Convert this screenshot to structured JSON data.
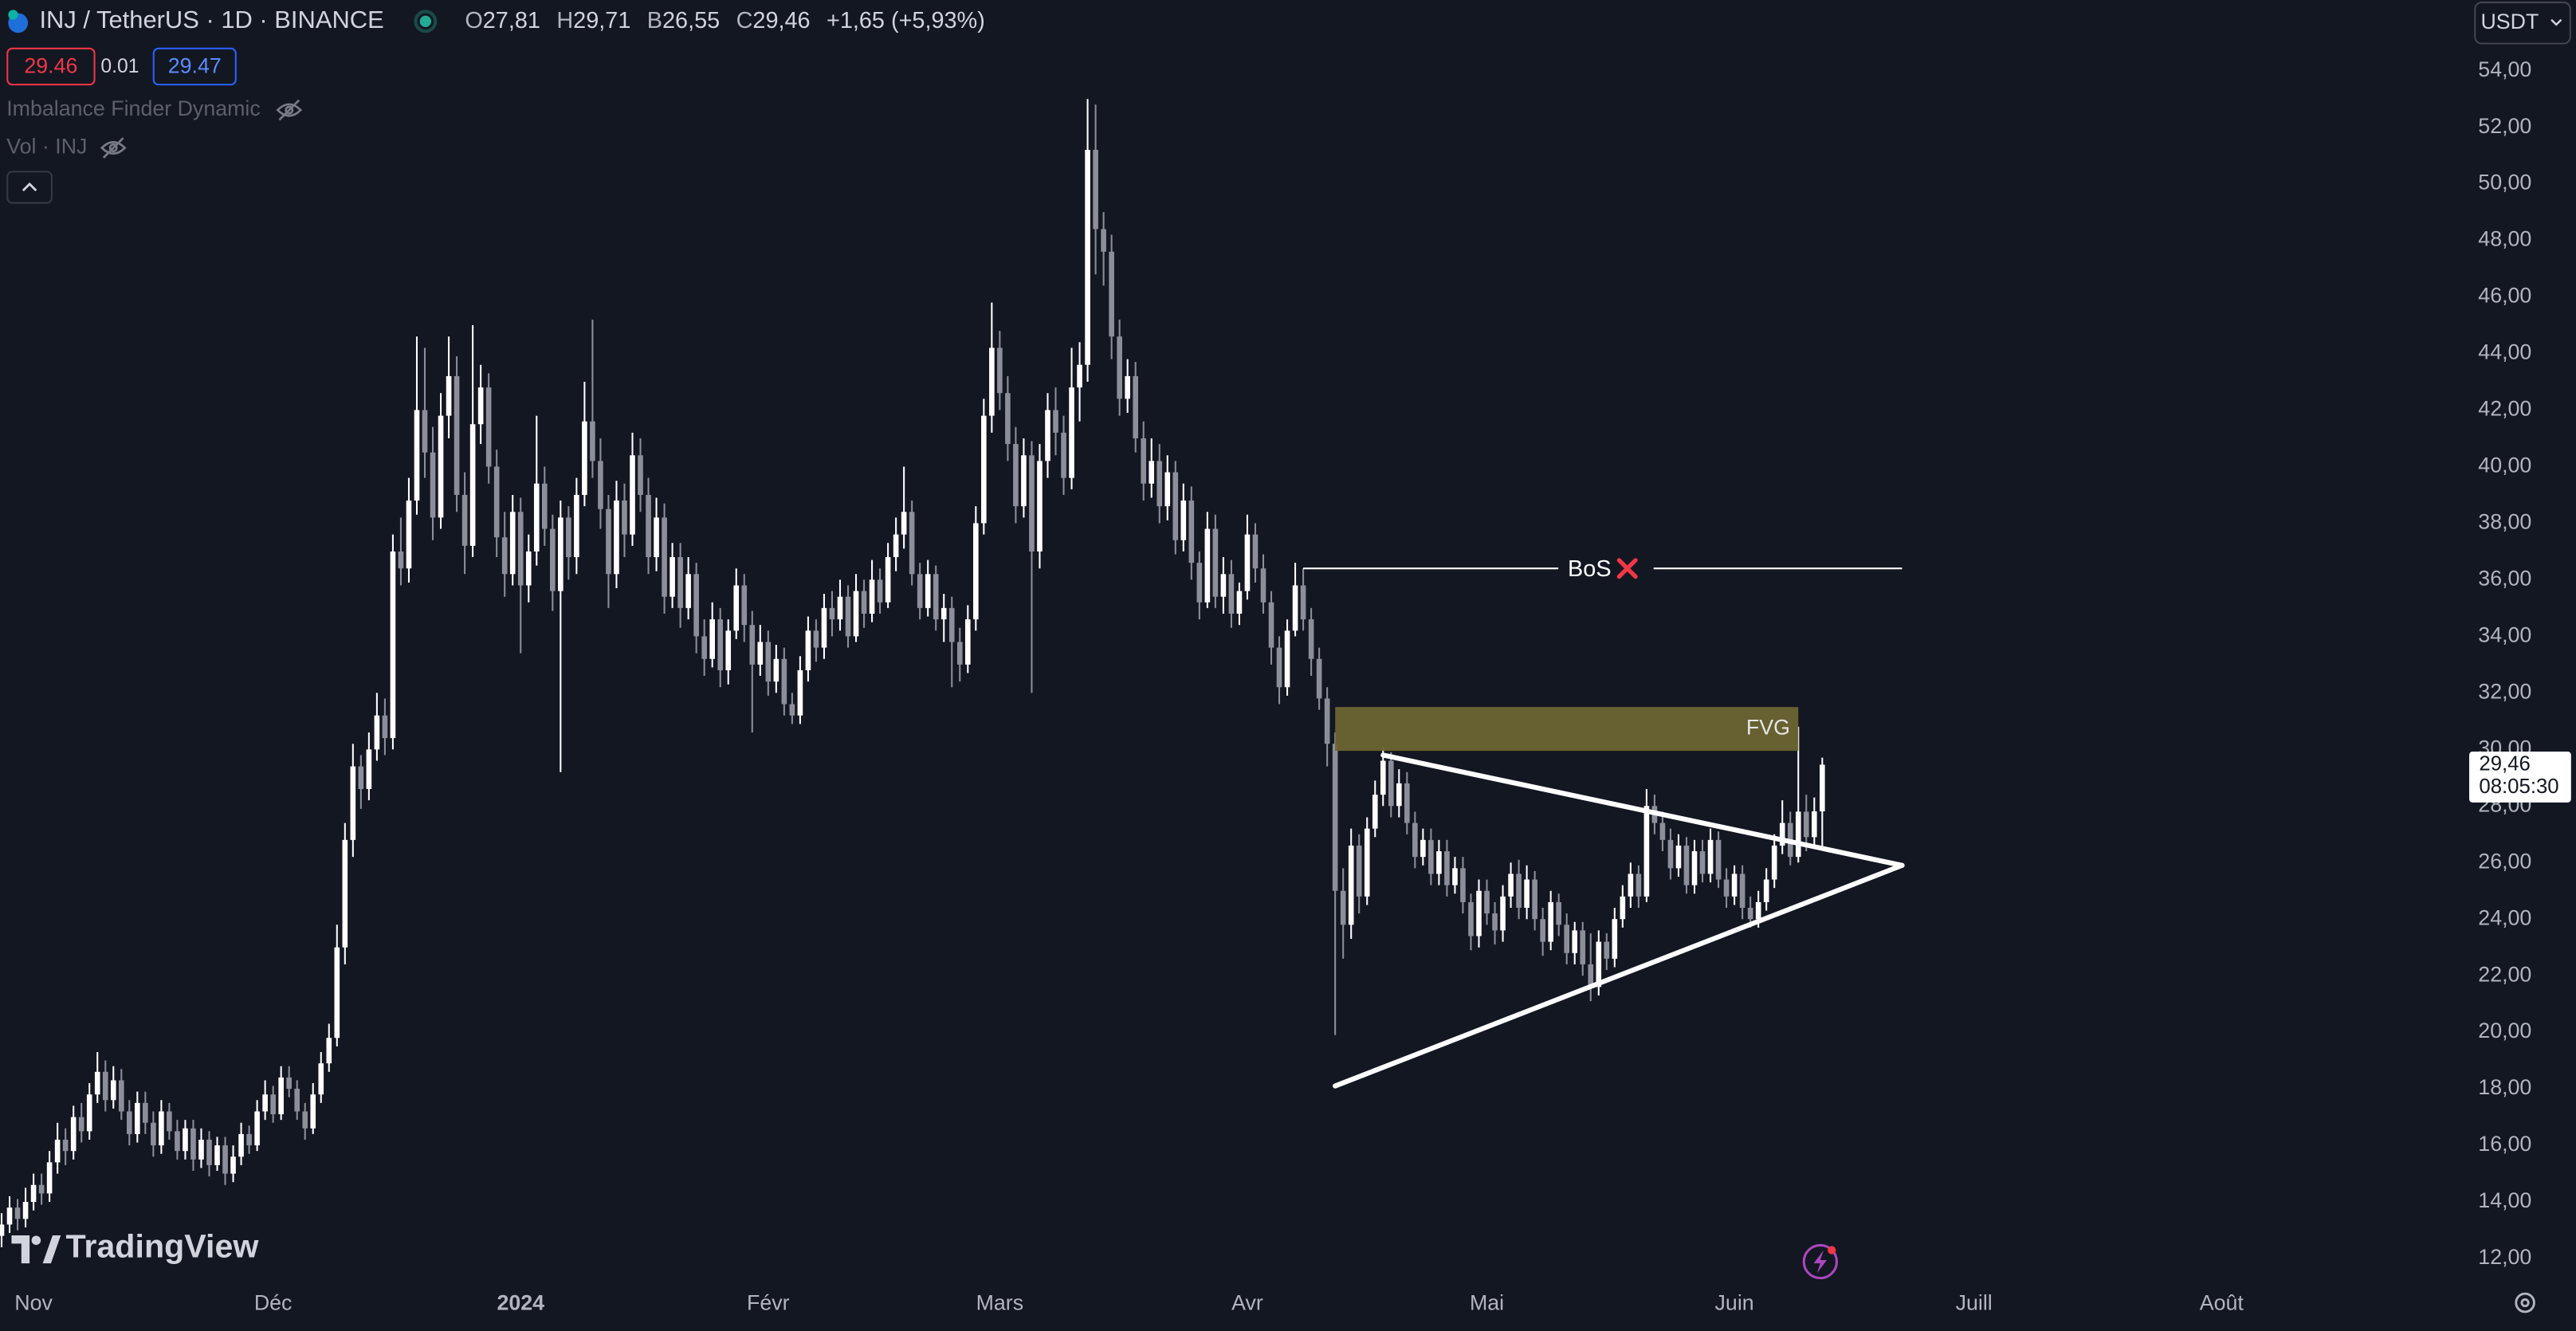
{
  "header": {
    "symbol": "INJ / TetherUS · 1D · BINANCE",
    "ohlc": [
      {
        "label": "O",
        "value": "27,81"
      },
      {
        "label": "H",
        "value": "29,71"
      },
      {
        "label": "B",
        "value": "26,55"
      },
      {
        "label": "C",
        "value": "29,46"
      }
    ],
    "change": "+1,65 (+5,93%)",
    "order_buttons": {
      "sell": "29.46",
      "spread": "0.01",
      "buy": "29.47"
    },
    "indicators": [
      "Imbalance Finder Dynamic",
      "Vol · INJ"
    ],
    "currency": "USDT",
    "brand": "TradingView"
  },
  "chart_data": {
    "type": "candlestick",
    "up_color": "#ffffff",
    "down_color": "#8c8f99",
    "xlim": [
      -0.2,
      308.4
    ],
    "ylim": [
      11.19,
      56.5
    ],
    "xticks": [
      {
        "value": 4,
        "label": "Nov"
      },
      {
        "value": 34,
        "label": "Déc"
      },
      {
        "value": 65,
        "label": "2024"
      },
      {
        "value": 96,
        "label": "Févr"
      },
      {
        "value": 125,
        "label": "Mars"
      },
      {
        "value": 156,
        "label": "Avr"
      },
      {
        "value": 186,
        "label": "Mai"
      },
      {
        "value": 217,
        "label": "Juin"
      },
      {
        "value": 247,
        "label": "Juill"
      },
      {
        "value": 278,
        "label": "Août"
      }
    ],
    "yticks": [
      {
        "value": 12,
        "label": "12,00"
      },
      {
        "value": 14,
        "label": "14,00"
      },
      {
        "value": 16,
        "label": "16,00"
      },
      {
        "value": 18,
        "label": "18,00"
      },
      {
        "value": 20,
        "label": "20,00"
      },
      {
        "value": 22,
        "label": "22,00"
      },
      {
        "value": 24,
        "label": "24,00"
      },
      {
        "value": 26,
        "label": "26,00"
      },
      {
        "value": 28,
        "label": "28,00"
      },
      {
        "value": 30,
        "label": "30,00"
      },
      {
        "value": 32,
        "label": "32,00"
      },
      {
        "value": 34,
        "label": "34,00"
      },
      {
        "value": 36,
        "label": "36,00"
      },
      {
        "value": 38,
        "label": "38,00"
      },
      {
        "value": 40,
        "label": "40,00"
      },
      {
        "value": 42,
        "label": "42,00"
      },
      {
        "value": 44,
        "label": "44,00"
      },
      {
        "value": 46,
        "label": "46,00"
      },
      {
        "value": 48,
        "label": "48,00"
      },
      {
        "value": 50,
        "label": "50,00"
      },
      {
        "value": 52,
        "label": "52,00"
      },
      {
        "value": 54,
        "label": "54,00"
      }
    ],
    "grid": false,
    "open": [
      12.8,
      13.2,
      13.8,
      13.4,
      14.0,
      14.6,
      14.3,
      15.4,
      16.2,
      15.8,
      17.0,
      16.5,
      17.8,
      18.6,
      17.6,
      18.3,
      17.2,
      16.4,
      17.5,
      16.8,
      16.0,
      17.2,
      16.5,
      15.8,
      16.6,
      15.5,
      16.2,
      15.3,
      16.0,
      15.0,
      15.6,
      16.4,
      16.0,
      17.2,
      17.8,
      17.1,
      18.4,
      18.0,
      17.2,
      16.6,
      17.8,
      18.9,
      19.8,
      23.0,
      26.8,
      29.4,
      28.6,
      30.0,
      31.2,
      30.4,
      37.0,
      36.4,
      38.8,
      42.0,
      40.5,
      38.2,
      41.8,
      43.2,
      39.0,
      37.2,
      41.5,
      42.8,
      40.0,
      37.5,
      36.2,
      38.4,
      35.8,
      37.0,
      39.4,
      37.8,
      35.6,
      38.2,
      36.8,
      39.0,
      41.6,
      40.2,
      38.5,
      36.2,
      38.8,
      37.6,
      40.4,
      39.0,
      36.8,
      38.2,
      35.4,
      36.8,
      35.0,
      36.2,
      34.0,
      33.2,
      34.6,
      32.8,
      34.2,
      35.8,
      34.4,
      33.0,
      33.8,
      32.4,
      33.2,
      31.6,
      31.2,
      32.8,
      34.2,
      33.6,
      35.0,
      34.6,
      35.4,
      34.0,
      35.6,
      34.8,
      36.0,
      35.2,
      36.8,
      37.6,
      38.4,
      36.2,
      35.0,
      36.2,
      34.6,
      35.0,
      33.8,
      33.0,
      34.6,
      38.0,
      41.8,
      44.2,
      42.6,
      40.8,
      38.6,
      40.4,
      37.0,
      40.2,
      42.0,
      41.2,
      39.6,
      42.8,
      43.6,
      51.2,
      48.4,
      47.6,
      44.6,
      42.4,
      43.2,
      41.0,
      39.4,
      40.2,
      38.6,
      39.8,
      37.4,
      38.8,
      36.6,
      35.2,
      37.8,
      35.4,
      36.2,
      34.8,
      35.6,
      37.6,
      36.4,
      35.2,
      33.6,
      32.2,
      34.2,
      35.8,
      34.6,
      33.2,
      31.8,
      30.2,
      25.0,
      23.8,
      26.6,
      24.8,
      27.2,
      28.4,
      29.6,
      28.0,
      28.8,
      27.4,
      26.2,
      26.8,
      25.6,
      26.4,
      25.2,
      25.8,
      24.6,
      23.4,
      25.0,
      24.2,
      23.6,
      24.8,
      25.6,
      24.4,
      25.4,
      24.0,
      23.2,
      24.6,
      23.8,
      22.8,
      23.6,
      22.4,
      21.6,
      23.2,
      22.6,
      24.0,
      24.8,
      25.6,
      24.8,
      28.0,
      27.4,
      26.8,
      25.8,
      26.6,
      25.2,
      26.4,
      25.6,
      26.8,
      25.4,
      24.8,
      25.6,
      24.4,
      24.0,
      24.6,
      25.4,
      26.6,
      27.4,
      26.2,
      27.8,
      26.9,
      27.81
    ],
    "high": [
      13.6,
      14.2,
      14.1,
      14.5,
      15.0,
      15.0,
      15.8,
      16.8,
      16.6,
      17.4,
      17.5,
      18.2,
      19.3,
      19.0,
      18.8,
      18.7,
      17.6,
      17.9,
      17.9,
      17.2,
      17.6,
      17.5,
      16.9,
      16.9,
      16.9,
      16.6,
      16.5,
      16.3,
      16.3,
      16.0,
      16.8,
      16.7,
      17.6,
      18.3,
      18.1,
      18.8,
      18.8,
      18.3,
      17.5,
      18.2,
      19.3,
      20.3,
      23.8,
      27.4,
      30.2,
      29.8,
      30.6,
      32.0,
      31.8,
      37.6,
      38.2,
      39.6,
      44.6,
      44.2,
      41.4,
      42.6,
      44.6,
      43.9,
      39.8,
      45.0,
      43.6,
      43.3,
      40.6,
      38.4,
      39.0,
      38.9,
      37.6,
      41.8,
      40.0,
      38.3,
      38.8,
      38.6,
      39.6,
      43.0,
      45.2,
      41.0,
      39.0,
      39.5,
      39.4,
      41.2,
      41.0,
      39.6,
      38.9,
      38.7,
      37.3,
      37.3,
      36.8,
      36.6,
      34.6,
      35.2,
      35.0,
      34.6,
      36.4,
      36.2,
      34.9,
      34.4,
      34.2,
      33.7,
      33.6,
      32.0,
      33.3,
      34.7,
      34.6,
      35.5,
      35.6,
      36.0,
      35.8,
      36.2,
      36.0,
      36.7,
      36.4,
      37.3,
      38.2,
      40.0,
      38.8,
      36.6,
      36.7,
      36.5,
      35.5,
      35.4,
      34.3,
      35.1,
      38.6,
      42.4,
      45.8,
      44.8,
      43.2,
      41.4,
      41.0,
      40.9,
      40.8,
      42.6,
      42.8,
      41.8,
      44.2,
      44.4,
      53.0,
      52.8,
      49.0,
      48.2,
      45.2,
      43.8,
      43.7,
      41.6,
      41.0,
      40.8,
      40.4,
      40.2,
      39.4,
      39.3,
      37.0,
      38.4,
      38.3,
      36.8,
      36.7,
      35.9,
      38.3,
      38.0,
      36.9,
      35.6,
      34.0,
      34.6,
      36.6,
      36.4,
      35.0,
      33.6,
      32.2,
      30.6,
      25.8,
      27.2,
      27.0,
      27.6,
      28.9,
      30.1,
      29.9,
      29.3,
      29.2,
      27.8,
      27.2,
      27.2,
      26.8,
      26.8,
      26.2,
      26.2,
      24.9,
      25.4,
      25.4,
      24.6,
      25.2,
      26.0,
      26.1,
      25.9,
      25.7,
      24.4,
      25.0,
      24.9,
      24.2,
      23.9,
      23.9,
      23.5,
      23.6,
      23.5,
      24.4,
      25.2,
      26.0,
      25.9,
      28.6,
      28.4,
      27.8,
      27.2,
      27.0,
      26.9,
      26.8,
      26.8,
      27.2,
      27.1,
      25.8,
      25.9,
      25.9,
      24.8,
      25.0,
      25.8,
      27.0,
      28.2,
      27.8,
      30.8,
      28.4,
      28.3,
      29.71
    ],
    "low": [
      12.4,
      12.9,
      13.0,
      13.1,
      13.7,
      13.9,
      14.0,
      15.0,
      15.3,
      15.5,
      16.1,
      16.2,
      17.5,
      17.2,
      17.3,
      16.9,
      16.0,
      16.1,
      16.4,
      15.6,
      15.7,
      16.2,
      15.5,
      15.5,
      15.1,
      15.2,
      14.9,
      15.1,
      14.6,
      14.7,
      15.3,
      15.7,
      15.8,
      16.9,
      16.8,
      16.9,
      17.7,
      16.9,
      16.2,
      16.4,
      17.5,
      18.6,
      19.5,
      22.4,
      26.2,
      27.9,
      28.2,
      29.6,
      29.8,
      30.0,
      35.8,
      35.9,
      38.3,
      39.6,
      37.4,
      37.8,
      41.0,
      38.4,
      36.2,
      36.8,
      40.8,
      39.4,
      36.8,
      35.4,
      35.8,
      33.4,
      35.2,
      36.5,
      37.2,
      34.9,
      29.2,
      36.0,
      36.2,
      38.6,
      39.6,
      37.8,
      35.0,
      35.7,
      36.8,
      37.2,
      38.4,
      36.2,
      36.3,
      34.8,
      35.0,
      34.3,
      34.6,
      33.4,
      32.6,
      32.9,
      32.2,
      32.3,
      33.9,
      33.8,
      30.6,
      32.6,
      31.9,
      32.0,
      31.2,
      30.9,
      30.9,
      32.4,
      33.1,
      33.2,
      34.0,
      34.2,
      33.6,
      33.8,
      34.3,
      34.5,
      34.8,
      35.0,
      36.3,
      37.1,
      35.8,
      34.6,
      34.7,
      34.2,
      33.8,
      32.2,
      32.4,
      32.7,
      34.2,
      37.6,
      41.2,
      42.0,
      40.2,
      38.0,
      38.2,
      32.0,
      36.4,
      39.6,
      40.4,
      39.0,
      39.2,
      41.6,
      43.0,
      46.8,
      46.4,
      43.8,
      41.8,
      41.9,
      40.5,
      38.8,
      38.9,
      38.0,
      38.1,
      36.9,
      37.0,
      36.0,
      34.6,
      35.0,
      35.0,
      34.8,
      34.3,
      34.4,
      35.3,
      35.9,
      34.8,
      33.0,
      31.6,
      31.9,
      34.0,
      34.2,
      32.6,
      31.4,
      29.4,
      19.9,
      22.6,
      23.3,
      24.2,
      24.5,
      26.9,
      28.0,
      27.6,
      27.6,
      27.0,
      25.8,
      25.9,
      25.2,
      25.2,
      24.8,
      24.9,
      24.2,
      22.9,
      23.0,
      23.8,
      23.1,
      23.2,
      24.4,
      24.0,
      24.0,
      23.6,
      22.7,
      22.9,
      23.4,
      22.4,
      22.4,
      22.0,
      21.1,
      21.3,
      22.2,
      22.3,
      23.7,
      24.4,
      24.4,
      24.6,
      27.0,
      26.4,
      25.4,
      25.5,
      24.9,
      24.9,
      25.3,
      25.3,
      25.1,
      24.4,
      24.5,
      24.0,
      23.7,
      23.7,
      24.3,
      25.1,
      26.3,
      25.9,
      26.0,
      26.4,
      26.5,
      26.55
    ],
    "close": [
      13.2,
      13.8,
      13.4,
      14.0,
      14.6,
      14.3,
      15.4,
      16.2,
      15.8,
      17.0,
      16.5,
      17.8,
      18.6,
      17.6,
      18.3,
      17.2,
      16.4,
      17.5,
      16.8,
      16.0,
      17.2,
      16.5,
      15.8,
      16.6,
      15.5,
      16.2,
      15.3,
      16.0,
      15.0,
      15.6,
      16.4,
      16.0,
      17.2,
      17.8,
      17.1,
      18.4,
      18.0,
      17.2,
      16.6,
      17.8,
      18.9,
      19.8,
      23.0,
      26.8,
      29.4,
      28.6,
      30.0,
      31.2,
      30.4,
      37.0,
      36.4,
      38.8,
      42.0,
      40.5,
      38.2,
      41.8,
      43.2,
      39.0,
      37.2,
      41.5,
      42.8,
      40.0,
      37.5,
      36.2,
      38.4,
      35.8,
      37.0,
      39.4,
      37.8,
      35.6,
      38.2,
      36.8,
      39.0,
      41.6,
      40.2,
      38.5,
      36.2,
      38.8,
      37.6,
      40.4,
      39.0,
      36.8,
      38.2,
      35.4,
      36.8,
      35.0,
      36.2,
      34.0,
      33.2,
      34.6,
      32.8,
      34.2,
      35.8,
      34.4,
      33.0,
      33.8,
      32.4,
      33.2,
      31.6,
      31.2,
      32.8,
      34.2,
      33.6,
      35.0,
      34.6,
      35.4,
      34.0,
      35.6,
      34.8,
      36.0,
      35.2,
      36.8,
      37.6,
      38.4,
      36.2,
      35.0,
      36.2,
      34.6,
      35.0,
      33.8,
      33.0,
      34.6,
      38.0,
      41.8,
      44.2,
      42.6,
      40.8,
      38.6,
      40.4,
      37.0,
      40.2,
      42.0,
      41.2,
      39.6,
      42.8,
      43.6,
      51.2,
      48.4,
      47.6,
      44.6,
      42.4,
      43.2,
      41.0,
      39.4,
      40.2,
      38.6,
      39.8,
      37.4,
      38.8,
      36.6,
      35.2,
      37.8,
      35.4,
      36.2,
      34.8,
      35.6,
      37.6,
      36.4,
      35.2,
      33.6,
      32.2,
      34.2,
      35.8,
      34.6,
      33.2,
      31.8,
      30.2,
      25.0,
      23.8,
      26.6,
      24.8,
      27.2,
      28.4,
      29.6,
      28.0,
      28.8,
      27.4,
      26.2,
      26.8,
      25.6,
      26.4,
      25.2,
      25.8,
      24.6,
      23.4,
      25.0,
      24.2,
      23.6,
      24.8,
      25.6,
      24.4,
      25.4,
      24.0,
      23.2,
      24.6,
      23.8,
      22.8,
      23.6,
      22.4,
      21.6,
      23.2,
      22.6,
      24.0,
      24.8,
      25.6,
      24.8,
      28.0,
      27.4,
      26.8,
      25.8,
      26.6,
      25.2,
      26.4,
      25.6,
      26.8,
      25.4,
      24.8,
      25.6,
      24.4,
      24.0,
      24.6,
      25.4,
      26.6,
      27.4,
      26.2,
      27.8,
      26.9,
      27.81,
      29.46
    ],
    "last_price": {
      "value": 29.46,
      "label": "29,46"
    },
    "countdown": "08:05:30",
    "annotations": {
      "bos": {
        "label": "BoS",
        "from": [
          163,
          36.4
        ],
        "to": [
          238,
          36.4
        ]
      },
      "fvg": {
        "label": "FVG",
        "from": [
          167,
          31.5
        ],
        "to": [
          225,
          29.95
        ]
      },
      "triangle": {
        "upper": [
          [
            173,
            29.8
          ],
          [
            238,
            25.9
          ]
        ],
        "lower": [
          [
            167,
            18.1
          ],
          [
            238,
            25.9
          ]
        ]
      }
    }
  }
}
